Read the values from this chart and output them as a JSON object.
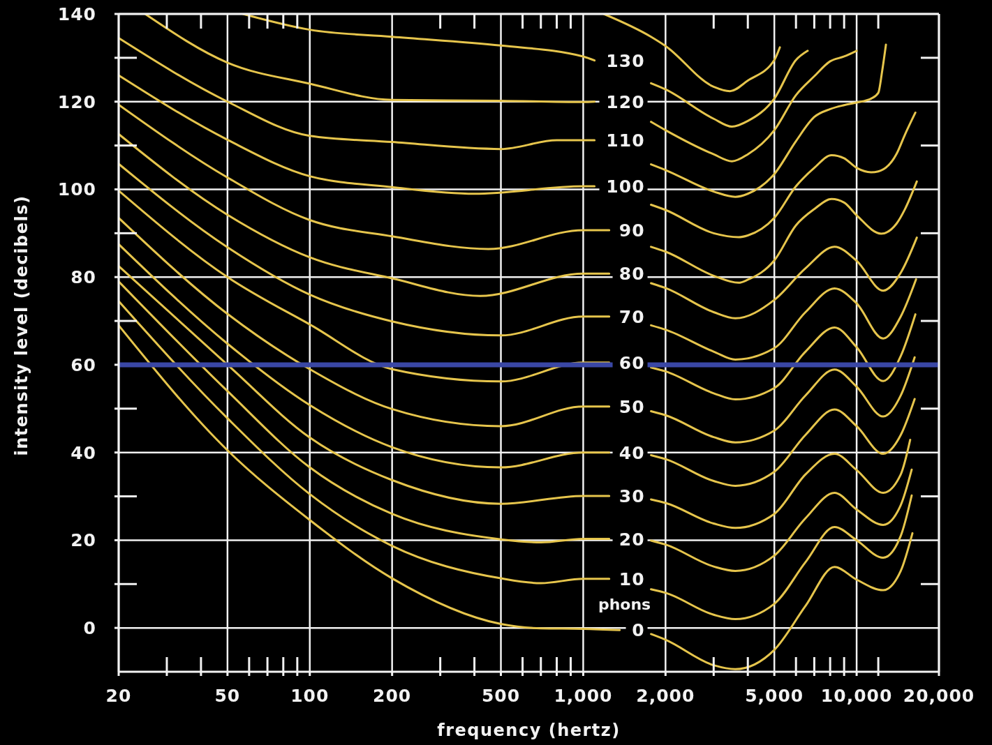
{
  "chart_data": {
    "type": "line",
    "xlabel": "frequency (hertz)",
    "ylabel": "intensity level (decibels)",
    "log": "x",
    "xlim": [
      20,
      20000
    ],
    "ylim": [
      -10,
      140
    ],
    "xticks": [
      20,
      {
        "value": 30,
        "label": null
      },
      {
        "value": 40,
        "label": null
      },
      50,
      {
        "value": 60,
        "label": null
      },
      {
        "value": 70,
        "label": null
      },
      {
        "value": 80,
        "label": null
      },
      {
        "value": 90,
        "label": null
      },
      100,
      200,
      {
        "value": 300,
        "label": null
      },
      {
        "value": 400,
        "label": null
      },
      500,
      {
        "value": 600,
        "label": null
      },
      {
        "value": 700,
        "label": null
      },
      {
        "value": 800,
        "label": null
      },
      {
        "value": 900,
        "label": null
      },
      {
        "value": 1000,
        "label": "1,000"
      },
      {
        "value": 2000,
        "label": "2,000"
      },
      {
        "value": 3000,
        "label": null
      },
      {
        "value": 4000,
        "label": null
      },
      {
        "value": 5000,
        "label": "5,000"
      },
      {
        "value": 6000,
        "label": null
      },
      {
        "value": 7000,
        "label": null
      },
      {
        "value": 8000,
        "label": null
      },
      {
        "value": 9000,
        "label": null
      },
      {
        "value": 10000,
        "label": "10,000"
      },
      {
        "value": 12000,
        "label": null
      },
      {
        "value": 20000,
        "label": "20,000"
      }
    ],
    "yticks": [
      0,
      {
        "value": 10,
        "label": null
      },
      20,
      {
        "value": 30,
        "label": null
      },
      40,
      {
        "value": 50,
        "label": null
      },
      60,
      {
        "value": 70,
        "label": null
      },
      80,
      {
        "value": 90,
        "label": null
      },
      100,
      {
        "value": 110,
        "label": null
      },
      120,
      {
        "value": 130,
        "label": null
      },
      140
    ],
    "grid": true,
    "marker": "none",
    "line_style": "solid",
    "series": [
      {
        "name": "130",
        "color": "#e6c54c",
        "x": [
          57,
          100,
          200,
          500,
          1000,
          1100,
          1400,
          1770,
          2000,
          3000,
          3500,
          4000,
          5000,
          6000,
          6620
        ],
        "values": [
          140,
          136.4,
          134.8,
          132.8,
          130.3,
          129.4,
          null,
          124.2,
          122.8,
          116.1,
          114.3,
          115.6,
          120.7,
          129.5,
          131.6
        ]
      },
      {
        "name": "120",
        "color": "#e6c54c",
        "x": [
          25,
          50,
          100,
          200,
          500,
          1000,
          1100,
          1400,
          1770,
          2000,
          3000,
          3500,
          4000,
          5000,
          6000,
          7000,
          8000,
          9000,
          10000
        ],
        "values": [
          140,
          128.9,
          124.1,
          120.4,
          120.2,
          119.9,
          120,
          null,
          115.4,
          113.5,
          108,
          106.4,
          108,
          113.5,
          121.5,
          125.8,
          129.2,
          130.3,
          131.6
        ]
      },
      {
        "name": "110",
        "color": "#e6c54c",
        "x": [
          20,
          50,
          100,
          200,
          500,
          800,
          1000,
          1100,
          1400,
          1770,
          2000,
          3000,
          3600,
          4000,
          5000,
          6000,
          7000,
          8000,
          9000,
          10000,
          11300,
          12000,
          12400,
          12800
        ],
        "values": [
          134.5,
          120,
          112.2,
          110.8,
          109.2,
          111.2,
          111.2,
          111.2,
          null,
          105.7,
          104.4,
          99.5,
          98.3,
          99,
          103.5,
          111,
          116.5,
          118.3,
          119.2,
          119.8,
          120.7,
          122,
          127,
          133
        ]
      },
      {
        "name": "100",
        "color": "#e6c54c",
        "x": [
          20,
          50,
          100,
          200,
          400,
          1000,
          1100,
          1400,
          1770,
          2000,
          3000,
          3700,
          4000,
          5000,
          6000,
          7000,
          8100,
          9000,
          10000,
          11300,
          12000,
          14000,
          15000,
          16400
        ],
        "values": [
          126,
          111.3,
          103,
          100.5,
          99,
          100.7,
          100.7,
          null,
          96.5,
          95.3,
          90,
          89.1,
          89.5,
          93.5,
          100.7,
          104.9,
          107.8,
          107.1,
          104.9,
          103.9,
          104.1,
          108.1,
          112.4,
          117.5
        ]
      },
      {
        "name": "90",
        "color": "#e6c54c",
        "x": [
          20,
          50,
          100,
          200,
          450,
          1000,
          1245,
          1400,
          1770,
          2000,
          3000,
          3700,
          4000,
          5000,
          6000,
          7000,
          8100,
          9000,
          10000,
          12300,
          14000,
          15000,
          16600
        ],
        "values": [
          119.3,
          102.7,
          93,
          89.3,
          86.4,
          90.7,
          90.7,
          null,
          86.9,
          85.8,
          80.3,
          78.7,
          79.4,
          83.8,
          91.8,
          95.5,
          97.8,
          97,
          94.1,
          89.9,
          92.2,
          95.4,
          101.8
        ]
      },
      {
        "name": "80",
        "color": "#e6c54c",
        "x": [
          20,
          50,
          100,
          200,
          420,
          1000,
          1245,
          1400,
          1770,
          2000,
          3000,
          3600,
          5000,
          6500,
          8300,
          10000,
          12500,
          14500,
          16600
        ],
        "values": [
          112.6,
          94.2,
          84.5,
          79.7,
          75.7,
          80.8,
          80.8,
          null,
          78.6,
          77.5,
          72,
          70.6,
          74.8,
          82,
          86.9,
          83.7,
          76.9,
          81,
          89
        ]
      },
      {
        "name": "70",
        "color": "#e6c54c",
        "x": [
          20,
          50,
          100,
          200,
          500,
          1000,
          1245,
          1400,
          1770,
          2000,
          3000,
          3600,
          5000,
          6500,
          8300,
          10000,
          12500,
          14500,
          16500
        ],
        "values": [
          105.8,
          86.8,
          76,
          69.9,
          66.7,
          71,
          71,
          null,
          69,
          68,
          63,
          61.2,
          63.8,
          72,
          77.4,
          74,
          66,
          71,
          79.5
        ]
      },
      {
        "name": "60",
        "color": "#e6c54c",
        "x": [
          20,
          50,
          100,
          200,
          500,
          1000,
          1245,
          1400,
          1770,
          2000,
          3000,
          3600,
          5000,
          6500,
          8300,
          10000,
          12500,
          14500,
          16400
        ],
        "values": [
          99.7,
          80,
          69.2,
          59,
          56.2,
          60.5,
          60.5,
          null,
          59.4,
          58.5,
          53.5,
          52.1,
          54.7,
          63,
          68.5,
          64,
          56.3,
          62,
          71.5
        ]
      },
      {
        "name": "50",
        "color": "#e6c54c",
        "x": [
          20,
          50,
          100,
          200,
          500,
          1000,
          1245,
          1400,
          1770,
          2000,
          3000,
          3600,
          5000,
          6500,
          8300,
          10000,
          12500,
          14500,
          16300
        ],
        "values": [
          93.5,
          71.6,
          59,
          49.9,
          46,
          50.5,
          50.5,
          null,
          49.4,
          48.5,
          43.5,
          42.3,
          45,
          53,
          58.9,
          55,
          48.2,
          53,
          61.7
        ]
      },
      {
        "name": "40",
        "color": "#e6c54c",
        "x": [
          20,
          50,
          100,
          200,
          500,
          1000,
          1245,
          1400,
          1770,
          2000,
          3000,
          3600,
          5000,
          6500,
          8300,
          10000,
          12500,
          14500,
          16300
        ],
        "values": [
          87.5,
          64.8,
          50.8,
          41.2,
          36.6,
          40,
          40,
          null,
          39.4,
          38.5,
          33.5,
          32.4,
          35.6,
          44,
          49.8,
          46,
          39.7,
          44,
          52.2
        ]
      },
      {
        "name": "30",
        "color": "#e6c54c",
        "x": [
          20,
          50,
          100,
          200,
          500,
          1000,
          1245,
          1400,
          1770,
          2000,
          3000,
          3600,
          5000,
          6500,
          8300,
          10000,
          12500,
          14500,
          15700
        ],
        "values": [
          82.5,
          60,
          43.4,
          33.7,
          28.3,
          30.1,
          30.1,
          null,
          29.3,
          28.5,
          23.8,
          22.8,
          26,
          35,
          39.7,
          36,
          30.8,
          35,
          42.9
        ]
      },
      {
        "name": "20",
        "color": "#e6c54c",
        "x": [
          20,
          50,
          100,
          200,
          500,
          700,
          1000,
          1245,
          1400,
          1770,
          2000,
          3000,
          3600,
          5000,
          6500,
          8300,
          10000,
          12500,
          14500,
          15900
        ],
        "values": [
          79,
          54,
          36.6,
          26,
          20.2,
          19.5,
          20.3,
          20.3,
          null,
          19.9,
          19,
          14,
          13,
          16.5,
          25,
          30.8,
          27,
          23.5,
          28,
          36.1
        ]
      },
      {
        "name": "10",
        "color": "#e6c54c",
        "x": [
          20,
          50,
          100,
          200,
          500,
          700,
          1000,
          1245,
          1400,
          1770,
          2000,
          3000,
          3600,
          5000,
          6500,
          8300,
          10000,
          12500,
          14500,
          15900
        ],
        "values": [
          74.5,
          47.8,
          30.5,
          18.7,
          11.3,
          10.2,
          11.2,
          11.2,
          null,
          8.8,
          8,
          3,
          2,
          5.5,
          15,
          23,
          20,
          16,
          21,
          30.2
        ]
      },
      {
        "name": "0",
        "color": "#e6c54c",
        "x": [
          20,
          50,
          100,
          200,
          500,
          700,
          1000,
          1360,
          1400,
          1770,
          2000,
          3000,
          3600,
          5000,
          6500,
          8300,
          10000,
          12500,
          14500,
          16000
        ],
        "values": [
          69,
          40.5,
          24.6,
          11.3,
          0.9,
          -0.1,
          -0.2,
          -0.5,
          null,
          -1.4,
          -2.7,
          -8.5,
          -9.4,
          -5,
          5,
          13.9,
          11,
          8.6,
          13,
          21.6
        ]
      },
      {
        "color": "#e6c54c",
        "x": [
          1190,
          1770,
          2000,
          3000,
          3440,
          4000,
          5000,
          5240
        ],
        "values": [
          140,
          134.8,
          132.7,
          123.4,
          122.4,
          124.8,
          129.5,
          132.4
        ]
      }
    ],
    "ref_lines": [
      {
        "axis": "y",
        "value": 60,
        "color": "#3a47a5"
      }
    ],
    "annotations": [
      "phons"
    ]
  }
}
